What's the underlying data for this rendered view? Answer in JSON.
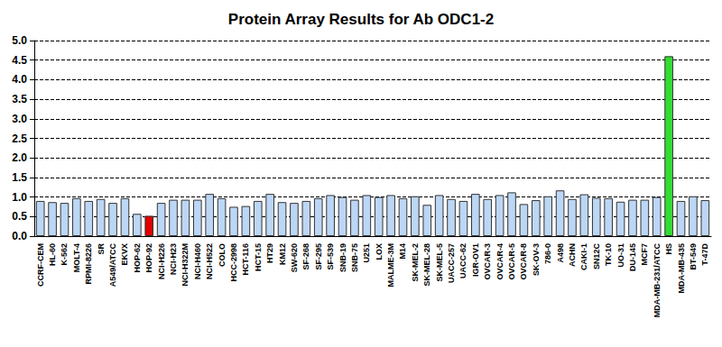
{
  "chart_data": {
    "type": "bar",
    "title": "Protein Array Results for Ab ODC1-2",
    "categories": [
      "CCRF-CEM",
      "HL-60",
      "K-562",
      "MOLT-4",
      "RPMI-8226",
      "SR",
      "A549/ATCC",
      "EKVX",
      "HOP-62",
      "HOP-92",
      "NCI-H226",
      "NCI-H23",
      "NCI-H322M",
      "NCI-H460",
      "NCI-H522",
      "COLO",
      "HCC-2998",
      "HCT-116",
      "HCT-15",
      "HT29",
      "KM12",
      "SW-620",
      "SF-268",
      "SF-295",
      "SF-539",
      "SNB-19",
      "SNB-75",
      "U251",
      "LOX",
      "MALME-3M",
      "M14",
      "SK-MEL-2",
      "SK-MEL-28",
      "SK-MEL-5",
      "UACC-257",
      "UACC-62",
      "IGR-OV1",
      "OVCAR-3",
      "OVCAR-4",
      "OVCAR-5",
      "OVCAR-8",
      "SK-OV-3",
      "786-0",
      "A498",
      "ACHN",
      "CAKI-1",
      "SN12C",
      "TK-10",
      "UO-31",
      "DU-145",
      "MCF7",
      "MDA-MB-231/ATCC",
      "HS",
      "MDA-MB-435",
      "BT-549",
      "T-47D"
    ],
    "values": [
      0.9,
      0.87,
      0.85,
      0.97,
      0.9,
      0.95,
      0.85,
      0.97,
      0.57,
      0.52,
      0.85,
      0.93,
      0.93,
      0.93,
      1.08,
      0.97,
      0.75,
      0.77,
      0.9,
      1.08,
      0.87,
      0.85,
      0.9,
      0.97,
      1.05,
      1.0,
      0.93,
      1.05,
      1.0,
      1.05,
      0.97,
      1.02,
      0.8,
      1.05,
      0.95,
      0.9,
      1.08,
      0.95,
      1.05,
      1.12,
      0.82,
      0.92,
      1.02,
      1.17,
      0.95,
      1.07,
      0.98,
      0.97,
      0.88,
      0.93,
      0.93,
      1.0,
      4.6,
      0.9,
      1.02,
      0.92
    ],
    "colors": [
      "#bcd6f5",
      "#bcd6f5",
      "#bcd6f5",
      "#bcd6f5",
      "#bcd6f5",
      "#bcd6f5",
      "#bcd6f5",
      "#bcd6f5",
      "#bcd6f5",
      "#e00000",
      "#bcd6f5",
      "#bcd6f5",
      "#bcd6f5",
      "#bcd6f5",
      "#bcd6f5",
      "#bcd6f5",
      "#bcd6f5",
      "#bcd6f5",
      "#bcd6f5",
      "#bcd6f5",
      "#bcd6f5",
      "#bcd6f5",
      "#bcd6f5",
      "#bcd6f5",
      "#bcd6f5",
      "#bcd6f5",
      "#bcd6f5",
      "#bcd6f5",
      "#bcd6f5",
      "#bcd6f5",
      "#bcd6f5",
      "#bcd6f5",
      "#bcd6f5",
      "#bcd6f5",
      "#bcd6f5",
      "#bcd6f5",
      "#bcd6f5",
      "#bcd6f5",
      "#bcd6f5",
      "#bcd6f5",
      "#bcd6f5",
      "#bcd6f5",
      "#bcd6f5",
      "#bcd6f5",
      "#bcd6f5",
      "#bcd6f5",
      "#bcd6f5",
      "#bcd6f5",
      "#bcd6f5",
      "#bcd6f5",
      "#bcd6f5",
      "#bcd6f5",
      "#33dd33",
      "#bcd6f5",
      "#bcd6f5",
      "#bcd6f5"
    ],
    "ylim": [
      0,
      5
    ],
    "yticks": [
      {
        "value": 0,
        "label": "0.0"
      },
      {
        "value": 0.5,
        "label": "0.5"
      },
      {
        "value": 1,
        "label": "1.0"
      },
      {
        "value": 1.5,
        "label": "1.5"
      },
      {
        "value": 2,
        "label": "2.0"
      },
      {
        "value": 2.5,
        "label": "2.5"
      },
      {
        "value": 3,
        "label": "3.0"
      },
      {
        "value": 3.5,
        "label": "3.5"
      },
      {
        "value": 4,
        "label": "4.0"
      },
      {
        "value": 4.5,
        "label": "4.5"
      },
      {
        "value": 5,
        "label": "5.0"
      }
    ],
    "grid": true
  }
}
